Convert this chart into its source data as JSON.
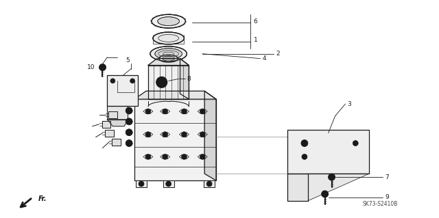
{
  "fig_width": 6.4,
  "fig_height": 3.19,
  "dpi": 100,
  "background_color": "#ffffff",
  "line_color": "#1a1a1a",
  "text_color": "#1a1a1a",
  "part_number": "SK73-S2410B",
  "lw_main": 0.9,
  "lw_thin": 0.5,
  "lw_leader": 0.6,
  "label_fontsize": 6.5,
  "pn_fontsize": 5.5
}
